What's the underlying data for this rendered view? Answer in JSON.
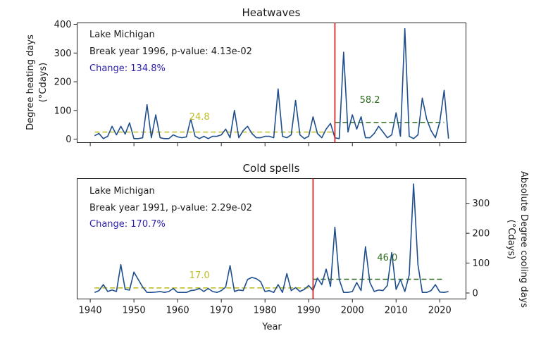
{
  "chart_data": [
    {
      "type": "line",
      "title": "Heatwaves",
      "xlabel": "",
      "ylabel": "Degree heating days\n(°Cdays)",
      "ylabel_lines": [
        "Degree heating days",
        "(°Cdays)"
      ],
      "y_axis_side": "left",
      "xlim": [
        1937,
        2026
      ],
      "ylim": [
        -12,
        405
      ],
      "xticks": [
        1940,
        1950,
        1960,
        1970,
        1980,
        1990,
        2000,
        2010,
        2020
      ],
      "xtick_labels_visible": false,
      "yticks": [
        0,
        100,
        200,
        300,
        400
      ],
      "ytick_labels": [
        "0",
        "100",
        "200",
        "300",
        "400"
      ],
      "grid": false,
      "annotations": {
        "location": "Lake Michigan",
        "break_text": "Break year 1996, p-value: 4.13e-02",
        "change_text": "Change: 134.8%"
      },
      "break_year": 1996,
      "before_mean": {
        "value": 24.8,
        "label": "24.8",
        "from": 1941,
        "to": 1996,
        "label_year": 1965,
        "label_y": 68
      },
      "after_mean": {
        "value": 58.2,
        "label": "58.2",
        "from": 1996,
        "to": 2021,
        "label_year": 2004,
        "label_y": 127
      },
      "series": [
        {
          "name": "Heatwaves",
          "x": [
            1941,
            1942,
            1943,
            1944,
            1945,
            1946,
            1947,
            1948,
            1949,
            1950,
            1951,
            1952,
            1953,
            1954,
            1955,
            1956,
            1957,
            1958,
            1959,
            1960,
            1961,
            1962,
            1963,
            1964,
            1965,
            1966,
            1967,
            1968,
            1969,
            1970,
            1971,
            1972,
            1973,
            1974,
            1975,
            1976,
            1977,
            1978,
            1979,
            1980,
            1981,
            1982,
            1983,
            1984,
            1985,
            1986,
            1987,
            1988,
            1989,
            1990,
            1991,
            1992,
            1993,
            1994,
            1995,
            1996,
            1997,
            1998,
            1999,
            2000,
            2001,
            2002,
            2003,
            2004,
            2005,
            2006,
            2007,
            2008,
            2009,
            2010,
            2011,
            2012,
            2013,
            2014,
            2015,
            2016,
            2017,
            2018,
            2019,
            2020,
            2021,
            2022
          ],
          "values": [
            12,
            20,
            2,
            10,
            45,
            15,
            45,
            18,
            57,
            2,
            2,
            5,
            120,
            5,
            85,
            5,
            2,
            2,
            15,
            8,
            5,
            8,
            70,
            10,
            2,
            10,
            2,
            10,
            10,
            15,
            35,
            5,
            100,
            5,
            30,
            45,
            20,
            5,
            5,
            10,
            10,
            5,
            175,
            10,
            5,
            15,
            135,
            15,
            2,
            10,
            78,
            20,
            5,
            35,
            55,
            5,
            2,
            303,
            25,
            85,
            35,
            78,
            5,
            5,
            20,
            45,
            25,
            5,
            15,
            92,
            10,
            385,
            10,
            2,
            15,
            143,
            70,
            30,
            5,
            60,
            170,
            2
          ]
        }
      ]
    },
    {
      "type": "line",
      "title": "Cold spells",
      "xlabel": "Year",
      "ylabel": "Absolute Degree cooling days\n(°Cdays)",
      "ylabel_lines": [
        "Absolute Degree cooling days",
        "(°Cdays)"
      ],
      "y_axis_side": "right",
      "xlim": [
        1937,
        2026
      ],
      "ylim": [
        -20,
        383
      ],
      "xticks": [
        1940,
        1950,
        1960,
        1970,
        1980,
        1990,
        2000,
        2010,
        2020
      ],
      "xtick_labels": [
        "1940",
        "1950",
        "1960",
        "1970",
        "1980",
        "1990",
        "2000",
        "2010",
        "2020"
      ],
      "yticks": [
        0,
        100,
        200,
        300
      ],
      "ytick_labels": [
        "0",
        "100",
        "200",
        "300"
      ],
      "grid": false,
      "annotations": {
        "location": "Lake Michigan",
        "break_text": "Break year 1991, p-value: 2.29e-02",
        "change_text": "Change: 170.7%"
      },
      "break_year": 1991,
      "before_mean": {
        "value": 17.0,
        "label": "17.0",
        "from": 1941,
        "to": 1991,
        "label_year": 1965,
        "label_y": 50
      },
      "after_mean": {
        "value": 46.0,
        "label": "46.0",
        "from": 1991,
        "to": 2021,
        "label_year": 2008,
        "label_y": 108
      },
      "series": [
        {
          "name": "Cold spells",
          "x": [
            1941,
            1942,
            1943,
            1944,
            1945,
            1946,
            1947,
            1948,
            1949,
            1950,
            1951,
            1952,
            1953,
            1954,
            1955,
            1956,
            1957,
            1958,
            1959,
            1960,
            1961,
            1962,
            1963,
            1964,
            1965,
            1966,
            1967,
            1968,
            1969,
            1970,
            1971,
            1972,
            1973,
            1974,
            1975,
            1976,
            1977,
            1978,
            1979,
            1980,
            1981,
            1982,
            1983,
            1984,
            1985,
            1986,
            1987,
            1988,
            1989,
            1990,
            1991,
            1992,
            1993,
            1994,
            1995,
            1996,
            1997,
            1998,
            1999,
            2000,
            2001,
            2002,
            2003,
            2004,
            2005,
            2006,
            2007,
            2008,
            2009,
            2010,
            2011,
            2012,
            2013,
            2014,
            2015,
            2016,
            2017,
            2018,
            2019,
            2020,
            2021,
            2022
          ],
          "values": [
            2,
            8,
            28,
            5,
            10,
            5,
            95,
            12,
            10,
            70,
            45,
            20,
            2,
            2,
            3,
            5,
            2,
            5,
            15,
            2,
            2,
            2,
            8,
            10,
            15,
            5,
            15,
            5,
            2,
            8,
            20,
            92,
            5,
            10,
            8,
            45,
            52,
            48,
            38,
            5,
            8,
            2,
            28,
            2,
            65,
            8,
            18,
            5,
            12,
            25,
            8,
            50,
            28,
            80,
            22,
            220,
            45,
            2,
            2,
            5,
            35,
            8,
            155,
            35,
            5,
            10,
            8,
            25,
            135,
            12,
            45,
            5,
            60,
            365,
            95,
            2,
            2,
            8,
            28,
            3,
            2,
            5
          ]
        }
      ]
    }
  ],
  "colors": {
    "series_line": "#1f4e8c",
    "break_line": "#d62728",
    "before_mean": "#bcbd22",
    "after_mean": "#2e6b1f",
    "change_text": "#2a1fa8",
    "text": "#1a1a1a",
    "axes": "#222222"
  }
}
